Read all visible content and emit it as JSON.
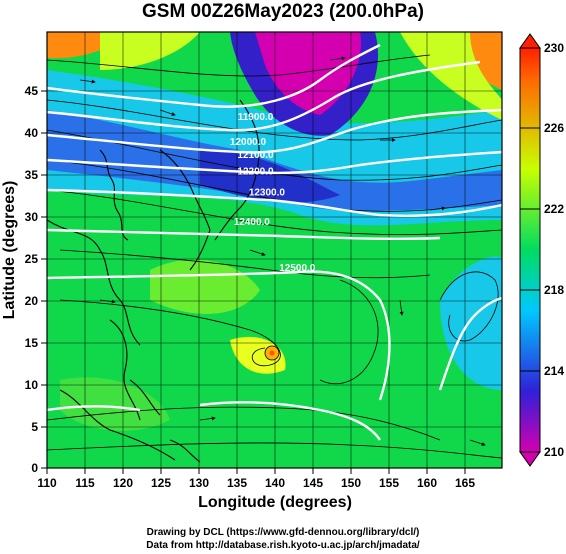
{
  "title": "GSM 00Z26May2023 (200.0hPa)",
  "x_axis": {
    "label": "Longitude (degrees)",
    "ticks": [
      "110",
      "115",
      "120",
      "125",
      "130",
      "135",
      "140",
      "145",
      "150",
      "155",
      "160",
      "165"
    ]
  },
  "y_axis": {
    "label": "Latitude  (degrees)",
    "ticks": [
      "0",
      "5",
      "10",
      "15",
      "20",
      "25",
      "30",
      "35",
      "40",
      "45"
    ]
  },
  "colorbar": {
    "ticks": [
      "210",
      "214",
      "218",
      "222",
      "226",
      "230"
    ],
    "colors": [
      "#d400b0",
      "#3020d8",
      "#00c8ff",
      "#00dc60",
      "#c8ff00",
      "#ff6a00",
      "#ff2000"
    ]
  },
  "contour_labels": [
    {
      "text": "11900.0",
      "lon": 137.5,
      "lat": 41.5
    },
    {
      "text": "12000.0",
      "lon": 136.5,
      "lat": 38.5
    },
    {
      "text": "12100.0",
      "lon": 137.5,
      "lat": 37.0
    },
    {
      "text": "12200.0",
      "lon": 137.5,
      "lat": 35.0
    },
    {
      "text": "12300.0",
      "lon": 139.0,
      "lat": 32.5
    },
    {
      "text": "12400.0",
      "lon": 137.0,
      "lat": 29.0
    },
    {
      "text": "12500.0",
      "lon": 143.0,
      "lat": 23.5
    }
  ],
  "credits": {
    "line1": "Drawing by DCL (https://www.gfd-dennou.org/library/dcl/)",
    "line2": "Data from http://database.rish.kyoto-u.ac.jp/arch/jmadata/"
  }
}
